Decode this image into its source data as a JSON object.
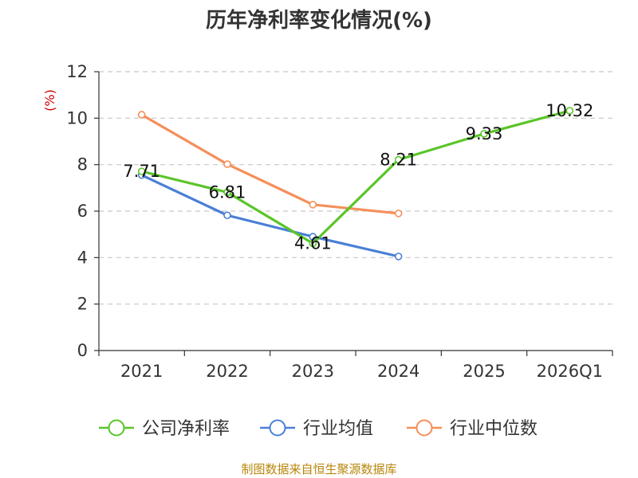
{
  "chart_data": {
    "type": "line",
    "title": "历年净利率变化情况(%)",
    "ylabel": "(%)",
    "categories": [
      "2021",
      "2022",
      "2023",
      "2024",
      "2025",
      "2026Q1"
    ],
    "ylim": [
      0,
      12
    ],
    "yticks": [
      0,
      2,
      4,
      6,
      8,
      10,
      12
    ],
    "grid": true,
    "legend_position": "bottom",
    "series": [
      {
        "name": "公司净利率",
        "color": "#5ac528",
        "values": [
          7.71,
          6.81,
          4.61,
          8.21,
          9.33,
          10.32
        ],
        "labels": [
          "7.71",
          "6.81",
          "4.61",
          "8.21",
          "9.33",
          "10.32"
        ]
      },
      {
        "name": "行业均值",
        "color": "#4a7fd6",
        "values": [
          7.55,
          5.82,
          4.9,
          4.05,
          null,
          null
        ]
      },
      {
        "name": "行业中位数",
        "color": "#f58f5a",
        "values": [
          10.15,
          8.02,
          6.28,
          5.9,
          null,
          null
        ]
      }
    ]
  },
  "footer": {
    "source": "制图数据来自恒生聚源数据库"
  }
}
